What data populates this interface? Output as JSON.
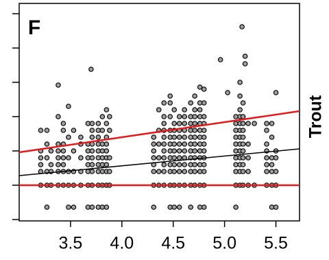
{
  "chart_data": {
    "type": "scatter",
    "title": "F",
    "y_label": "Trout",
    "xlim": [
      3.0,
      5.73
    ],
    "ylim": [
      -1.04,
      5.3
    ],
    "xticks": [
      3.5,
      {
        "value": 4,
        "label": "4.0"
      },
      4.5,
      {
        "value": 5,
        "label": "5.0"
      },
      5.5
    ],
    "yticks": [
      -1,
      0,
      1,
      2,
      3,
      4,
      5
    ],
    "point_color": "#a0a0a0",
    "x": [
      3.21,
      3.21,
      3.21,
      3.21,
      3.21,
      3.21,
      3.27,
      3.27,
      3.27,
      3.27,
      3.27,
      3.27,
      3.31,
      3.31,
      3.31,
      3.31,
      3.38,
      3.38,
      3.38,
      3.38,
      3.38,
      3.38,
      3.38,
      3.38,
      3.43,
      3.43,
      3.43,
      3.43,
      3.43,
      3.43,
      3.43,
      3.43,
      3.48,
      3.48,
      3.48,
      3.48,
      3.48,
      3.48,
      3.53,
      3.53,
      3.53,
      3.53,
      3.53,
      3.6,
      3.6,
      3.6,
      3.6,
      3.6,
      3.67,
      3.67,
      3.67,
      3.67,
      3.67,
      3.67,
      3.67,
      3.67,
      3.7,
      3.71,
      3.71,
      3.71,
      3.71,
      3.71,
      3.71,
      3.71,
      3.71,
      3.71,
      3.71,
      3.77,
      3.77,
      3.77,
      3.77,
      3.77,
      3.77,
      3.77,
      3.77,
      3.77,
      3.77,
      3.81,
      3.81,
      3.81,
      3.81,
      3.81,
      3.81,
      3.81,
      3.81,
      3.81,
      3.85,
      3.85,
      3.85,
      3.85,
      3.85,
      3.85,
      3.85,
      3.85,
      3.85,
      3.85,
      3.88,
      3.88,
      3.88,
      3.88,
      3.88,
      4.31,
      4.31,
      4.31,
      4.31,
      4.31,
      4.31,
      4.31,
      4.31,
      4.36,
      4.36,
      4.36,
      4.36,
      4.36,
      4.36,
      4.41,
      4.41,
      4.41,
      4.41,
      4.41,
      4.41,
      4.41,
      4.41,
      4.41,
      4.41,
      4.41,
      4.47,
      4.47,
      4.47,
      4.47,
      4.47,
      4.47,
      4.47,
      4.47,
      4.47,
      4.47,
      4.47,
      4.47,
      4.51,
      4.51,
      4.51,
      4.51,
      4.51,
      4.51,
      4.51,
      4.51,
      4.51,
      4.51,
      4.51,
      4.56,
      4.56,
      4.56,
      4.56,
      4.56,
      4.56,
      4.56,
      4.56,
      4.56,
      4.56,
      4.56,
      4.61,
      4.61,
      4.61,
      4.61,
      4.61,
      4.61,
      4.61,
      4.61,
      4.61,
      4.61,
      4.61,
      4.67,
      4.67,
      4.67,
      4.67,
      4.67,
      4.67,
      4.67,
      4.67,
      4.67,
      4.67,
      4.67,
      4.67,
      4.71,
      4.71,
      4.71,
      4.71,
      4.71,
      4.71,
      4.71,
      4.71,
      4.71,
      4.71,
      4.71,
      4.71,
      4.76,
      4.76,
      4.76,
      4.76,
      4.76,
      4.76,
      4.76,
      4.76,
      4.76,
      4.76,
      4.76,
      4.76,
      4.76,
      4.76,
      4.8,
      4.8,
      4.8,
      4.8,
      4.8,
      4.8,
      4.8,
      4.8,
      4.8,
      4.8,
      4.8,
      4.8,
      4.8,
      4.96,
      5.03,
      5.11,
      5.11,
      5.11,
      5.11,
      5.11,
      5.11,
      5.11,
      5.11,
      5.11,
      5.11,
      5.11,
      5.15,
      5.15,
      5.15,
      5.15,
      5.15,
      5.15,
      5.15,
      5.15,
      5.15,
      5.15,
      5.15,
      5.15,
      5.15,
      5.17,
      5.18,
      5.18,
      5.18,
      5.18,
      5.18,
      5.18,
      5.18,
      5.18,
      5.18,
      5.18,
      5.18,
      5.2,
      5.2,
      5.23,
      5.23,
      5.23,
      5.23,
      5.23,
      5.29,
      5.29,
      5.41,
      5.41,
      5.41,
      5.41,
      5.41,
      5.41,
      5.41,
      5.41,
      5.46,
      5.46,
      5.46,
      5.46,
      5.46,
      5.46,
      5.46,
      5.5,
      5.5,
      5.5,
      5.5,
      5.5,
      5.5
    ],
    "values": [
      0,
      0.4,
      0.6,
      0.8,
      1.0,
      1.6,
      -0.64,
      0,
      0.4,
      0.8,
      1.2,
      1.6,
      0,
      0.4,
      0.6,
      1.0,
      0,
      0.4,
      0.6,
      0.8,
      1.0,
      1.2,
      2.0,
      2.92,
      0,
      0.4,
      0.6,
      0.8,
      1.0,
      1.2,
      1.6,
      1.8,
      -0.64,
      0,
      0.4,
      0.8,
      1.4,
      2.3,
      -0.64,
      0,
      0.4,
      1.0,
      1.6,
      0,
      0.4,
      0.8,
      1.2,
      1.4,
      -0.64,
      0,
      0.4,
      0.6,
      0.8,
      1.0,
      1.2,
      1.8,
      3.38,
      -0.64,
      0,
      0.4,
      0.6,
      0.8,
      1.0,
      1.2,
      1.4,
      1.6,
      1.8,
      -0.64,
      0,
      0.4,
      0.6,
      0.8,
      1.0,
      1.2,
      1.4,
      1.6,
      1.8,
      -0.64,
      0,
      0.4,
      0.6,
      0.8,
      1.0,
      1.2,
      1.6,
      2.0,
      -0.64,
      0,
      0.4,
      0.6,
      0.8,
      1.0,
      1.2,
      1.4,
      1.8,
      2.2,
      0,
      0.4,
      0.8,
      1.6,
      2.0,
      -0.64,
      0,
      0.4,
      0.6,
      0.8,
      1.0,
      1.2,
      1.4,
      0,
      0.4,
      0.8,
      1.2,
      1.6,
      2.2,
      0,
      0.4,
      0.6,
      0.8,
      1.0,
      1.2,
      1.4,
      1.6,
      1.8,
      2.0,
      2.4,
      -0.64,
      0,
      0.4,
      0.6,
      0.8,
      1.0,
      1.2,
      1.4,
      1.6,
      2.0,
      2.4,
      2.6,
      -0.64,
      0,
      0.4,
      0.6,
      0.8,
      1.0,
      1.2,
      1.4,
      1.6,
      1.8,
      2.2,
      -0.64,
      0,
      0.4,
      0.6,
      0.8,
      1.0,
      1.2,
      1.4,
      1.6,
      1.8,
      2.0,
      0,
      0.4,
      0.6,
      0.8,
      1.0,
      1.2,
      1.4,
      1.6,
      1.8,
      2.0,
      2.2,
      -0.64,
      0,
      0.4,
      0.6,
      0.8,
      1.0,
      1.2,
      1.4,
      1.6,
      1.8,
      2.0,
      2.4,
      0,
      0.4,
      0.6,
      0.8,
      1.0,
      1.2,
      1.4,
      1.6,
      1.8,
      2.0,
      2.2,
      2.6,
      -0.64,
      0,
      0.4,
      0.6,
      0.8,
      1.0,
      1.2,
      1.4,
      1.6,
      1.8,
      2.0,
      2.2,
      2.4,
      2.86,
      -0.64,
      0,
      0.4,
      0.6,
      0.8,
      1.0,
      1.2,
      1.4,
      1.6,
      1.8,
      2.0,
      2.4,
      2.8,
      3.66,
      2.7,
      -0.64,
      0,
      0.4,
      0.6,
      0.8,
      1.0,
      1.2,
      1.4,
      1.6,
      1.8,
      2.0,
      0,
      0.4,
      0.6,
      0.8,
      1.0,
      1.2,
      1.4,
      1.6,
      1.8,
      2.0,
      2.2,
      2.6,
      3.0,
      4.62,
      0,
      0.4,
      0.6,
      0.8,
      1.0,
      1.2,
      1.4,
      1.6,
      1.8,
      2.0,
      2.4,
      3.54,
      3.76,
      0,
      0.4,
      0.8,
      1.2,
      1.8,
      0,
      1.8,
      0,
      0.4,
      0.6,
      0.8,
      1.0,
      1.2,
      1.6,
      1.8,
      -0.64,
      0,
      0.4,
      0.6,
      0.8,
      1.4,
      1.8,
      -0.64,
      0,
      0.4,
      0.8,
      1.0,
      2.7
    ],
    "lines": [
      {
        "color": "#e41a1c",
        "x": [
          3.0,
          5.73
        ],
        "values": [
          0.96,
          2.16
        ]
      },
      {
        "color": "#000000",
        "x": [
          3.0,
          5.73
        ],
        "values": [
          0.28,
          1.06
        ]
      },
      {
        "color": "#e41a1c",
        "x": [
          3.0,
          5.73
        ],
        "values": [
          0,
          0
        ]
      }
    ]
  }
}
